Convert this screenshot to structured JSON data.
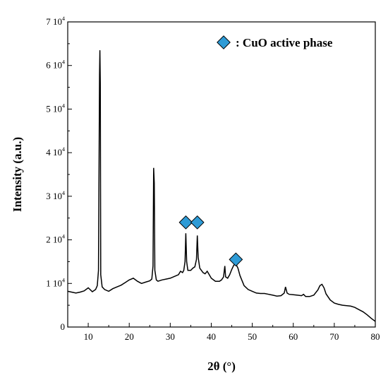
{
  "chart_data": {
    "type": "line",
    "xlabel": "2θ (°)",
    "ylabel": "Intensity (a.u.)",
    "xlim": [
      5,
      80
    ],
    "ylim": [
      0,
      70000
    ],
    "x_ticks": [
      {
        "value": 10,
        "label": "10"
      },
      {
        "value": 20,
        "label": "20"
      },
      {
        "value": 30,
        "label": "30"
      },
      {
        "value": 40,
        "label": "40"
      },
      {
        "value": 50,
        "label": "50"
      },
      {
        "value": 60,
        "label": "60"
      },
      {
        "value": 70,
        "label": "70"
      },
      {
        "value": 80,
        "label": "80"
      }
    ],
    "y_ticks": [
      {
        "value": 0,
        "mantissa": "0",
        "exp": ""
      },
      {
        "value": 10000,
        "mantissa": "1 10",
        "exp": "4"
      },
      {
        "value": 20000,
        "mantissa": "2 10",
        "exp": "4"
      },
      {
        "value": 30000,
        "mantissa": "3 10",
        "exp": "4"
      },
      {
        "value": 40000,
        "mantissa": "4 10",
        "exp": "4"
      },
      {
        "value": 50000,
        "mantissa": "5 10",
        "exp": "4"
      },
      {
        "value": 60000,
        "mantissa": "6 10",
        "exp": "4"
      },
      {
        "value": 70000,
        "mantissa": "7 10",
        "exp": "4"
      }
    ],
    "series": [
      {
        "color": "#000000",
        "points": [
          [
            5,
            8200
          ],
          [
            6,
            8000
          ],
          [
            7,
            7800
          ],
          [
            8,
            8000
          ],
          [
            9,
            8300
          ],
          [
            10,
            9000
          ],
          [
            11,
            8100
          ],
          [
            11.8,
            8600
          ],
          [
            12.2,
            9500
          ],
          [
            12.5,
            13000
          ],
          [
            12.75,
            58000
          ],
          [
            12.85,
            63500
          ],
          [
            12.95,
            56000
          ],
          [
            13.05,
            12000
          ],
          [
            13.4,
            9200
          ],
          [
            14,
            8600
          ],
          [
            15,
            8200
          ],
          [
            16,
            8800
          ],
          [
            17,
            9200
          ],
          [
            18,
            9600
          ],
          [
            19,
            10200
          ],
          [
            20,
            10800
          ],
          [
            21,
            11200
          ],
          [
            22,
            10500
          ],
          [
            23,
            10000
          ],
          [
            24,
            10300
          ],
          [
            25,
            10600
          ],
          [
            25.5,
            11000
          ],
          [
            25.8,
            14000
          ],
          [
            25.95,
            36500
          ],
          [
            26.1,
            33000
          ],
          [
            26.25,
            13000
          ],
          [
            26.6,
            10800
          ],
          [
            27,
            10500
          ],
          [
            28,
            10800
          ],
          [
            29,
            11000
          ],
          [
            30,
            11200
          ],
          [
            31,
            11600
          ],
          [
            32,
            12000
          ],
          [
            32.5,
            12800
          ],
          [
            33,
            12500
          ],
          [
            33.3,
            13000
          ],
          [
            33.6,
            15000
          ],
          [
            33.8,
            21500
          ],
          [
            34.0,
            15000
          ],
          [
            34.3,
            13000
          ],
          [
            35,
            13000
          ],
          [
            35.5,
            13500
          ],
          [
            36,
            13800
          ],
          [
            36.4,
            15500
          ],
          [
            36.6,
            21000
          ],
          [
            36.8,
            16000
          ],
          [
            37.2,
            13500
          ],
          [
            38,
            12500
          ],
          [
            38.5,
            12200
          ],
          [
            39,
            12800
          ],
          [
            39.5,
            12000
          ],
          [
            40,
            11200
          ],
          [
            41,
            10500
          ],
          [
            42,
            10500
          ],
          [
            42.5,
            10800
          ],
          [
            43,
            11500
          ],
          [
            43.3,
            14000
          ],
          [
            43.5,
            11500
          ],
          [
            44,
            11200
          ],
          [
            44.5,
            12000
          ],
          [
            45,
            13200
          ],
          [
            45.5,
            14200
          ],
          [
            46,
            14500
          ],
          [
            46.5,
            13500
          ],
          [
            47,
            11800
          ],
          [
            48,
            9500
          ],
          [
            49,
            8600
          ],
          [
            50,
            8200
          ],
          [
            51,
            7800
          ],
          [
            52,
            7700
          ],
          [
            53,
            7700
          ],
          [
            54,
            7500
          ],
          [
            55,
            7300
          ],
          [
            56,
            7100
          ],
          [
            57,
            7200
          ],
          [
            57.8,
            7800
          ],
          [
            58.1,
            9200
          ],
          [
            58.5,
            7800
          ],
          [
            59,
            7500
          ],
          [
            60,
            7400
          ],
          [
            61,
            7300
          ],
          [
            62,
            7200
          ],
          [
            62.5,
            7500
          ],
          [
            63,
            7000
          ],
          [
            64,
            7000
          ],
          [
            65,
            7300
          ],
          [
            66,
            8500
          ],
          [
            66.5,
            9500
          ],
          [
            67,
            9800
          ],
          [
            67.5,
            9000
          ],
          [
            68,
            7600
          ],
          [
            69,
            6200
          ],
          [
            70,
            5500
          ],
          [
            71,
            5200
          ],
          [
            72,
            5000
          ],
          [
            73,
            4900
          ],
          [
            74,
            4800
          ],
          [
            75,
            4500
          ],
          [
            76,
            4000
          ],
          [
            77,
            3500
          ],
          [
            78,
            2800
          ],
          [
            79,
            2000
          ],
          [
            80,
            1300
          ]
        ]
      }
    ],
    "markers": [
      {
        "x": 33.8,
        "y": 24000,
        "color": "#2E9BD6"
      },
      {
        "x": 36.6,
        "y": 24000,
        "color": "#2E9BD6"
      },
      {
        "x": 46.0,
        "y": 15500,
        "color": "#2E9BD6"
      }
    ],
    "legend": {
      "position": "top-right",
      "marker_color": "#2E9BD6",
      "label": ": CuO active phase"
    }
  }
}
